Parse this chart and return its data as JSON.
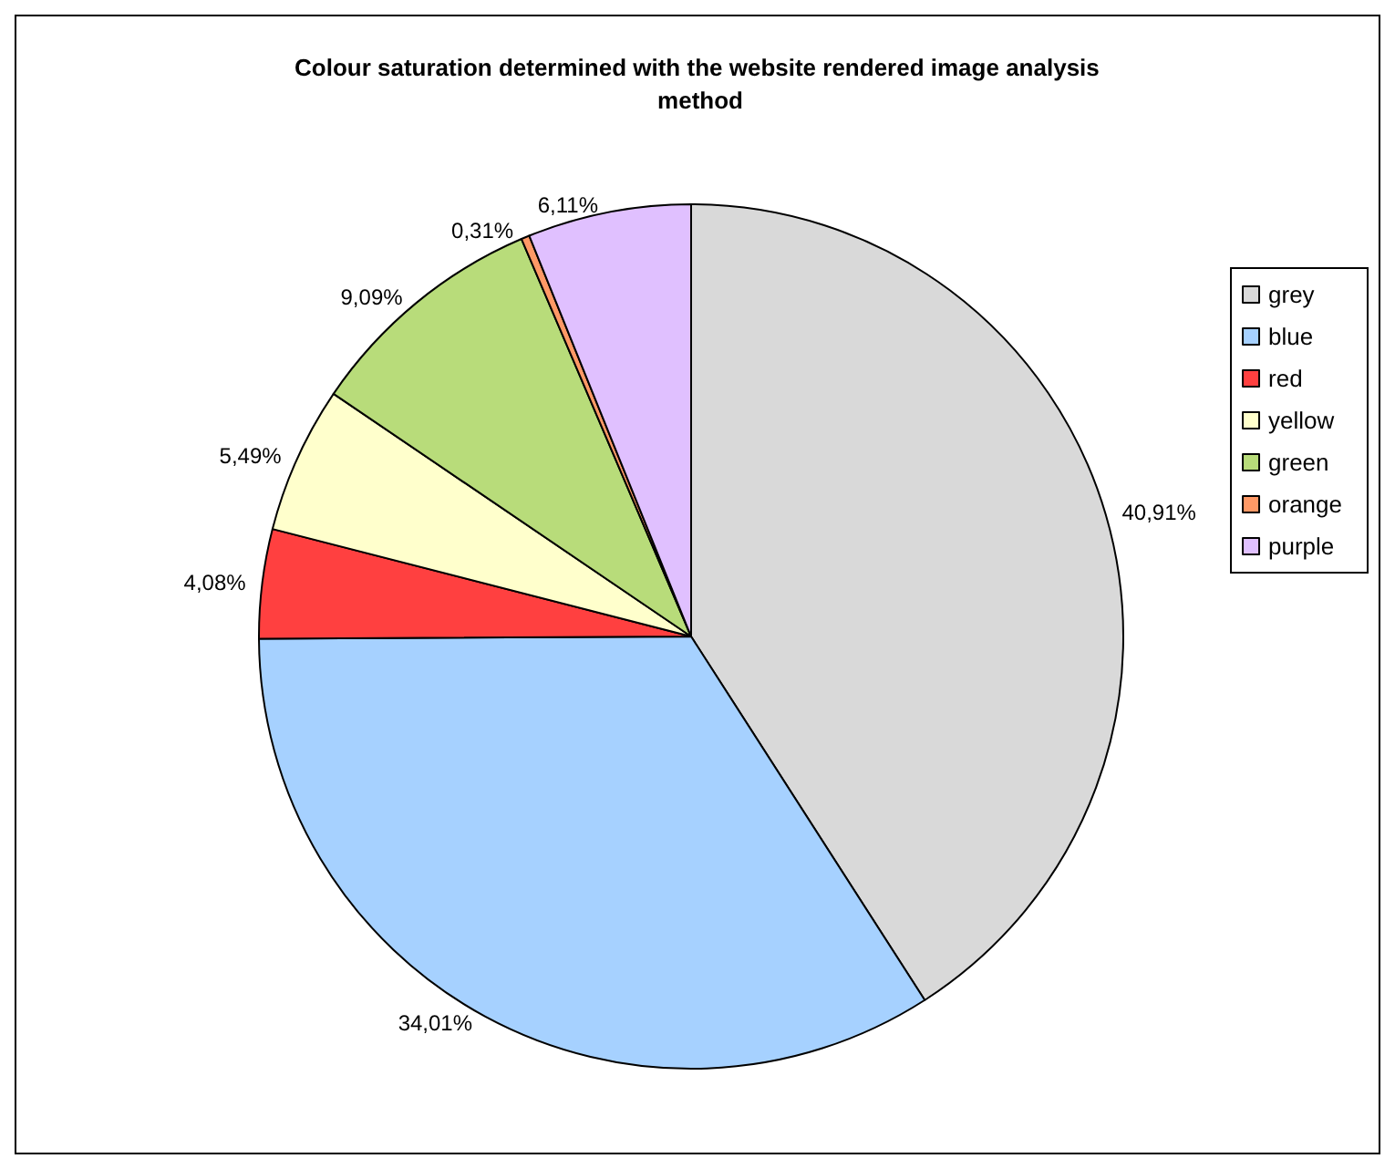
{
  "chart_data": {
    "type": "pie",
    "title": "Colour saturation determined with the website rendered image analysis method",
    "categories": [
      "grey",
      "blue",
      "red",
      "yellow",
      "green",
      "orange",
      "purple"
    ],
    "values": [
      40.91,
      34.01,
      4.08,
      5.49,
      9.09,
      0.31,
      6.11
    ],
    "colors": [
      "#d9d9d9",
      "#a6d1ff",
      "#ff4040",
      "#ffffcc",
      "#b8dc7a",
      "#ff9966",
      "#e0c0ff"
    ],
    "value_labels": [
      "40,91%",
      "34,01%",
      "4,08%",
      "5,49%",
      "9,09%",
      "0,31%",
      "6,11%"
    ],
    "legend": "right"
  }
}
